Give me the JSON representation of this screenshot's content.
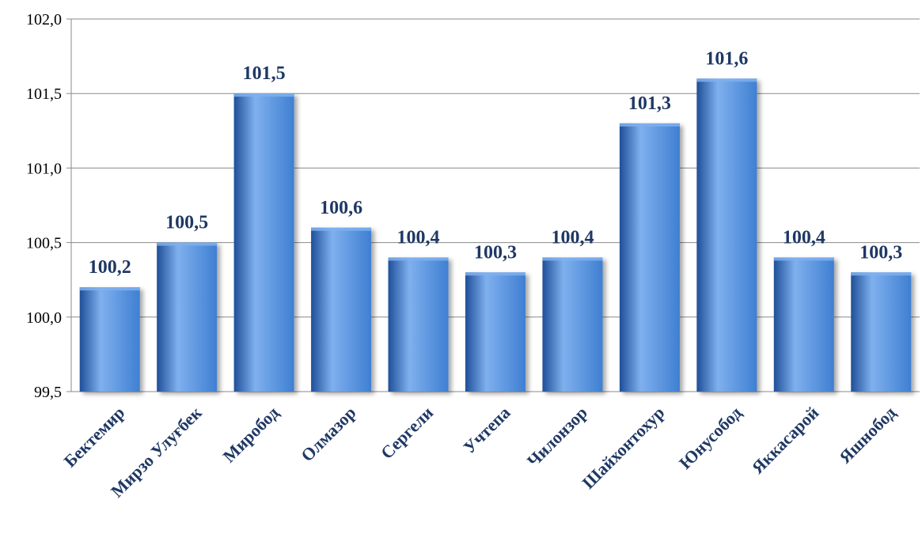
{
  "chart_data": {
    "type": "bar",
    "title": "",
    "xlabel": "",
    "ylabel": "",
    "categories": [
      "Бектемир",
      "Мирзо Улуғбек",
      "Миробод",
      "Олмазор",
      "Сергели",
      "Учтепа",
      "Чилонзор",
      "Шайхонтохур",
      "Юнусобод",
      "Яккасарой",
      "Яшнобод"
    ],
    "values": [
      100.2,
      100.5,
      101.5,
      100.6,
      100.4,
      100.3,
      100.4,
      101.3,
      101.6,
      100.4,
      100.3
    ],
    "value_labels": [
      "100,2",
      "100,5",
      "101,5",
      "100,6",
      "100,4",
      "100,3",
      "100,4",
      "101,3",
      "101,6",
      "100,4",
      "100,3"
    ],
    "ylim": [
      99.5,
      102.0
    ],
    "yticks": [
      99.5,
      100.0,
      100.5,
      101.0,
      101.5,
      102.0
    ],
    "ytick_labels": [
      "99,5",
      "100,0",
      "100,5",
      "101,0",
      "101,5",
      "102,0"
    ],
    "grid": true,
    "legend": "none",
    "colors": {
      "bar": "#3f7fd2",
      "bar_dark": "#1f4f99",
      "bar_light": "#7fb0ee",
      "label": "#1f3864",
      "grid": "#8a8a8a"
    }
  }
}
